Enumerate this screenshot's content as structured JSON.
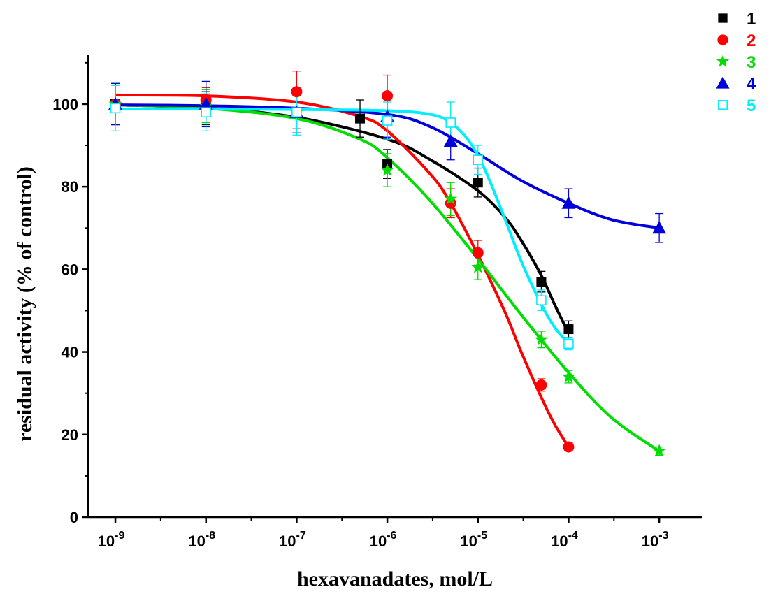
{
  "chart_data": {
    "type": "scatter",
    "title": "",
    "xlabel": "hexavanadates, mol/L",
    "ylabel": "residual activity (% of control)",
    "x_scale": "log",
    "xlim": [
      5e-10,
      0.003
    ],
    "ylim": [
      0,
      112
    ],
    "y_ticks": [
      "0",
      "20",
      "40",
      "60",
      "80",
      "100"
    ],
    "x_ticks": [
      {
        "base": "10",
        "exp": "-9"
      },
      {
        "base": "10",
        "exp": "-8"
      },
      {
        "base": "10",
        "exp": "-7"
      },
      {
        "base": "10",
        "exp": "-6"
      },
      {
        "base": "10",
        "exp": "-5"
      },
      {
        "base": "10",
        "exp": "-4"
      },
      {
        "base": "10",
        "exp": "-3"
      }
    ],
    "legend_position": "top-right",
    "series": [
      {
        "name": "1",
        "color": "#000000",
        "marker": "square-filled",
        "points": [
          {
            "x": 1e-09,
            "y": 100,
            "err": 5
          },
          {
            "x": 1e-08,
            "y": 99,
            "err": 4
          },
          {
            "x": 1e-07,
            "y": 98,
            "err": 4
          },
          {
            "x": 5e-07,
            "y": 96.5,
            "err": 4.5
          },
          {
            "x": 1e-06,
            "y": 85.5,
            "err": 3.5
          },
          {
            "x": 1e-05,
            "y": 81,
            "err": 3.5
          },
          {
            "x": 5e-05,
            "y": 57,
            "err": 2.5
          },
          {
            "x": 0.0001,
            "y": 45.5,
            "err": 2
          }
        ],
        "fit": [
          [
            1e-09,
            99.8
          ],
          [
            1e-08,
            99.0
          ],
          [
            1e-07,
            96.8
          ],
          [
            1e-06,
            91.5
          ],
          [
            3e-06,
            86.5
          ],
          [
            1e-05,
            79.0
          ],
          [
            2e-05,
            72.5
          ],
          [
            3e-05,
            67.0
          ],
          [
            5e-05,
            58.5
          ],
          [
            7e-05,
            51.5
          ],
          [
            0.0001,
            44.5
          ]
        ]
      },
      {
        "name": "2",
        "color": "#ff0000",
        "marker": "circle-filled",
        "points": [
          {
            "x": 1e-09,
            "y": 100,
            "err": 5
          },
          {
            "x": 1e-08,
            "y": 101,
            "err": 3
          },
          {
            "x": 1e-07,
            "y": 103,
            "err": 5
          },
          {
            "x": 1e-06,
            "y": 102,
            "err": 5
          },
          {
            "x": 5e-06,
            "y": 76,
            "err": 3.5
          },
          {
            "x": 1e-05,
            "y": 64,
            "err": 3
          },
          {
            "x": 5e-05,
            "y": 32,
            "err": 1.5
          },
          {
            "x": 0.0001,
            "y": 17,
            "err": 1
          }
        ],
        "fit": [
          [
            1e-09,
            102.2
          ],
          [
            1e-08,
            102.0
          ],
          [
            1e-07,
            100.5
          ],
          [
            5e-07,
            97.0
          ],
          [
            1e-06,
            93.5
          ],
          [
            3e-06,
            83.0
          ],
          [
            5e-06,
            76.0
          ],
          [
            1e-05,
            63.5
          ],
          [
            2e-05,
            49.5
          ],
          [
            3e-05,
            40.0
          ],
          [
            5e-05,
            29.0
          ],
          [
            7e-05,
            22.5
          ],
          [
            0.0001,
            17.0
          ]
        ]
      },
      {
        "name": "3",
        "color": "#00dd00",
        "marker": "star",
        "points": [
          {
            "x": 1e-09,
            "y": 100,
            "err": 5
          },
          {
            "x": 1e-08,
            "y": 99.5,
            "err": 4
          },
          {
            "x": 1e-07,
            "y": 98,
            "err": 5
          },
          {
            "x": 1e-06,
            "y": 84,
            "err": 4
          },
          {
            "x": 5e-06,
            "y": 77,
            "err": 4
          },
          {
            "x": 1e-05,
            "y": 60.5,
            "err": 3
          },
          {
            "x": 5e-05,
            "y": 43,
            "err": 2
          },
          {
            "x": 0.0001,
            "y": 34,
            "err": 1.5
          },
          {
            "x": 0.001,
            "y": 16,
            "err": 1
          }
        ],
        "fit": [
          [
            1e-09,
            99.8
          ],
          [
            1e-08,
            99.0
          ],
          [
            1e-07,
            96.5
          ],
          [
            5e-07,
            91.5
          ],
          [
            1e-06,
            87.0
          ],
          [
            3e-06,
            76.5
          ],
          [
            1e-05,
            62.5
          ],
          [
            3e-05,
            49.0
          ],
          [
            0.0001,
            35.0
          ],
          [
            0.0003,
            24.0
          ],
          [
            0.001,
            16.0
          ]
        ]
      },
      {
        "name": "4",
        "color": "#0000dd",
        "marker": "triangle-filled",
        "points": [
          {
            "x": 1e-09,
            "y": 100,
            "err": 5
          },
          {
            "x": 1e-08,
            "y": 100,
            "err": 5.5
          },
          {
            "x": 1e-07,
            "y": 98,
            "err": 5
          },
          {
            "x": 1e-06,
            "y": 97,
            "err": 5
          },
          {
            "x": 5e-06,
            "y": 91,
            "err": 4.5
          },
          {
            "x": 0.0001,
            "y": 76,
            "err": 3.5
          },
          {
            "x": 0.001,
            "y": 70,
            "err": 3.5
          }
        ],
        "fit": [
          [
            1e-09,
            99.8
          ],
          [
            1e-08,
            99.6
          ],
          [
            1e-07,
            99.0
          ],
          [
            1e-06,
            97.5
          ],
          [
            3e-06,
            94.5
          ],
          [
            1e-05,
            88.0
          ],
          [
            3e-05,
            81.5
          ],
          [
            0.0001,
            76.0
          ],
          [
            0.0003,
            72.0
          ],
          [
            0.001,
            70.0
          ]
        ]
      },
      {
        "name": "5",
        "color": "#00eeff",
        "marker": "square-open",
        "points": [
          {
            "x": 1e-09,
            "y": 99,
            "err": 5.5
          },
          {
            "x": 1e-08,
            "y": 98,
            "err": 4.5
          },
          {
            "x": 1e-07,
            "y": 98,
            "err": 5.5
          },
          {
            "x": 1e-06,
            "y": 96,
            "err": 4.5
          },
          {
            "x": 5e-06,
            "y": 95.5,
            "err": 5
          },
          {
            "x": 1e-05,
            "y": 86.5,
            "err": 3.5
          },
          {
            "x": 5e-05,
            "y": 52.5,
            "err": 2.5
          },
          {
            "x": 0.0001,
            "y": 42,
            "err": 1.5
          }
        ],
        "fit": [
          [
            1e-09,
            98.8
          ],
          [
            1e-08,
            98.8
          ],
          [
            1e-07,
            98.7
          ],
          [
            1e-06,
            98.4
          ],
          [
            3e-06,
            97.5
          ],
          [
            5e-06,
            95.5
          ],
          [
            8e-06,
            91.0
          ],
          [
            1.2e-05,
            84.0
          ],
          [
            2e-05,
            72.0
          ],
          [
            3e-05,
            62.0
          ],
          [
            5e-05,
            51.5
          ],
          [
            7e-05,
            46.0
          ],
          [
            0.0001,
            42.0
          ]
        ]
      }
    ]
  }
}
